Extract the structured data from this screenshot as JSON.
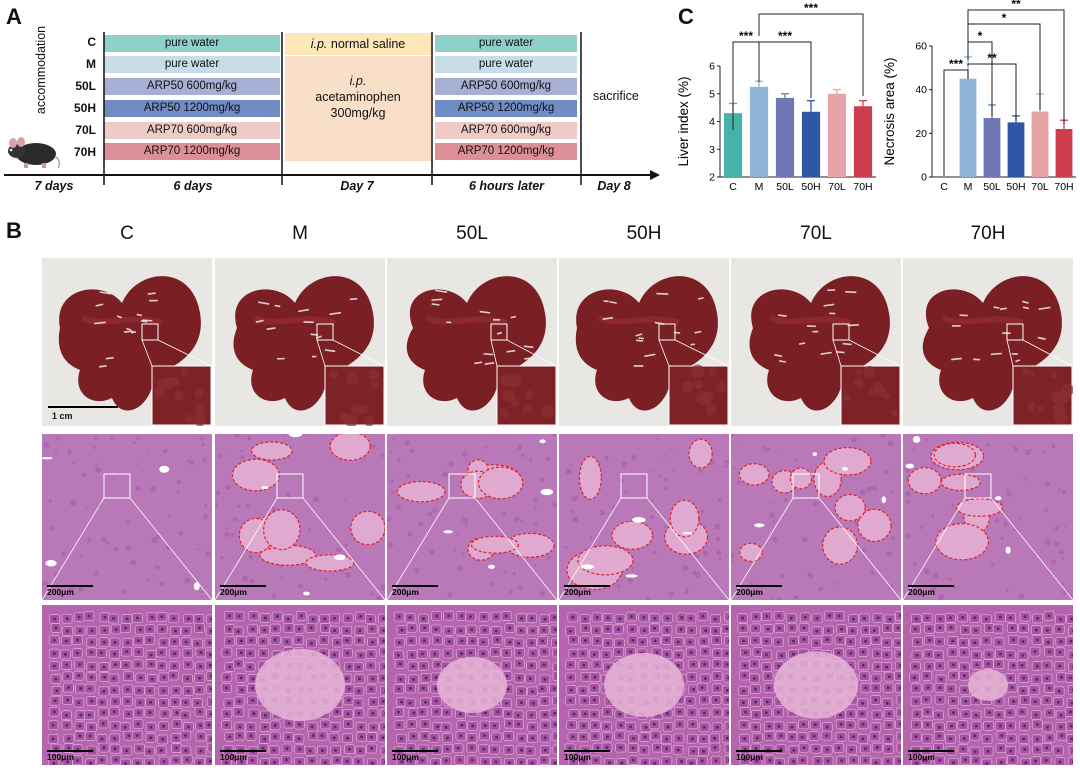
{
  "panels": {
    "a": "A",
    "b": "B",
    "c": "C"
  },
  "panel_a": {
    "side_label": "accommodation",
    "groups": [
      "C",
      "M",
      "50L",
      "50H",
      "70L",
      "70H"
    ],
    "pre_treatment": [
      "pure water",
      "pure water",
      "ARP50 600mg/kg",
      "ARP50 1200mg/kg",
      "ARP70 600mg/kg",
      "ARP70 1200mg/kg"
    ],
    "day7_control": {
      "route": "i.p.",
      "agent": "normal saline"
    },
    "day7_model": {
      "route": "i.p.",
      "agent": "acetaminophen",
      "dose": "300mg/kg"
    },
    "post_treatment": [
      "pure water",
      "pure water",
      "ARP50 600mg/kg",
      "ARP50 1200mg/kg",
      "ARP70 600mg/kg",
      "ARP70 1200mg/kg"
    ],
    "end": "sacrifice",
    "timeline": [
      "7 days",
      "6 days",
      "Day 7",
      "6 hours later",
      "Day 8"
    ],
    "colors": [
      "#8fd0c9",
      "#c7dde8",
      "#a7afd5",
      "#6f8cc4",
      "#eecbc6",
      "#dc8f96"
    ]
  },
  "panel_b": {
    "columns": [
      "C",
      "M",
      "50L",
      "50H",
      "70L",
      "70H"
    ],
    "scale_photo": "1 cm",
    "scale_low": "200μm",
    "scale_high": "100μm"
  },
  "chart_data": [
    {
      "type": "bar",
      "categories": [
        "C",
        "M",
        "50L",
        "50H",
        "70L",
        "70H"
      ],
      "values": [
        4.3,
        5.25,
        4.85,
        4.35,
        5.0,
        4.55
      ],
      "errors": [
        0.35,
        0.2,
        0.15,
        0.4,
        0.15,
        0.2
      ],
      "colors": [
        "#45b3a8",
        "#8fb5d7",
        "#6e77b3",
        "#2f57a6",
        "#e7a4a6",
        "#cf3d4c"
      ],
      "ylabel": "Liver index (%)",
      "ylim": [
        2,
        6
      ],
      "yticks": [
        2,
        3,
        4,
        5,
        6
      ],
      "significance": [
        {
          "from": "C",
          "to": "M",
          "label": "***"
        },
        {
          "from": "M",
          "to": "50H",
          "label": "***"
        },
        {
          "from": "M",
          "to": "70H",
          "label": "***"
        }
      ]
    },
    {
      "type": "bar",
      "categories": [
        "C",
        "M",
        "50L",
        "50H",
        "70L",
        "70H"
      ],
      "values": [
        0,
        45,
        27,
        25,
        30,
        22
      ],
      "errors": [
        0,
        10,
        6,
        3,
        8,
        4
      ],
      "colors": [
        "#45b3a8",
        "#8fb5d7",
        "#6e77b3",
        "#2f57a6",
        "#e7a4a6",
        "#cf3d4c"
      ],
      "ylabel": "Necrosis area (%)",
      "ylim": [
        0,
        60
      ],
      "yticks": [
        0,
        20,
        40,
        60
      ],
      "significance": [
        {
          "from": "C",
          "to": "M",
          "label": "***"
        },
        {
          "from": "M",
          "to": "50L",
          "label": "*"
        },
        {
          "from": "M",
          "to": "50H",
          "label": "**"
        },
        {
          "from": "M",
          "to": "70L",
          "label": "*"
        },
        {
          "from": "M",
          "to": "70H",
          "label": "**"
        }
      ]
    }
  ]
}
